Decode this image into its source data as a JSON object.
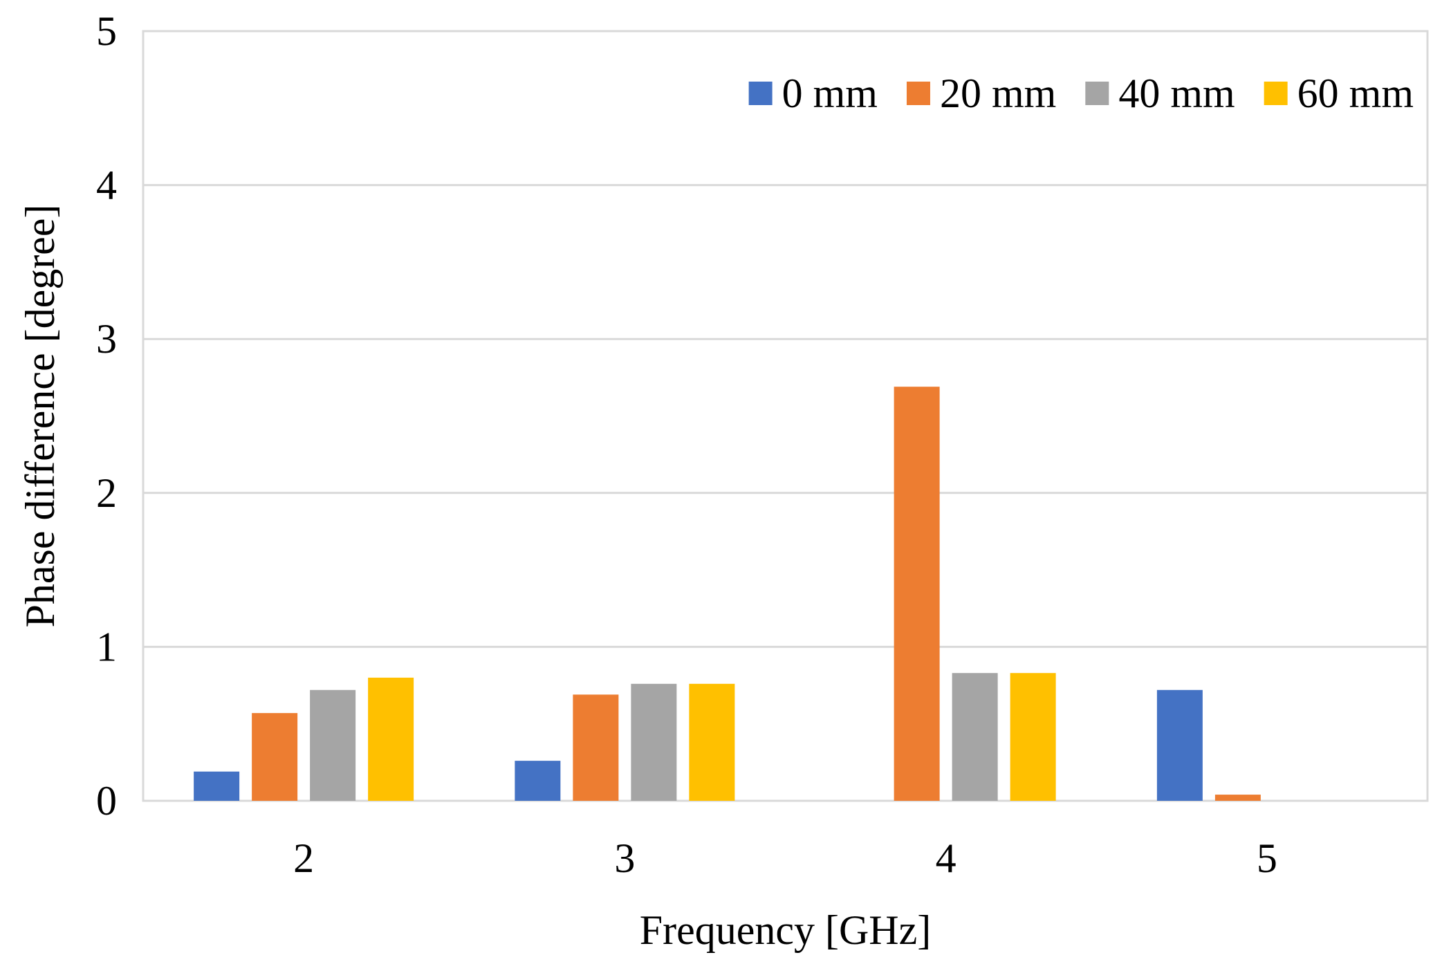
{
  "chart_data": {
    "type": "bar",
    "title": "",
    "xlabel": "Frequency [GHz]",
    "ylabel": "Phase difference [degree]",
    "categories": [
      "2",
      "3",
      "4",
      "5"
    ],
    "yticks": [
      "0",
      "1",
      "2",
      "3",
      "4",
      "5"
    ],
    "ylim": [
      0,
      5
    ],
    "grid": true,
    "legend_position": "top-right",
    "series": [
      {
        "name": "0 mm",
        "color": "#4472C4",
        "values": [
          0.19,
          0.26,
          0.0,
          0.72
        ]
      },
      {
        "name": "20 mm",
        "color": "#ED7D31",
        "values": [
          0.57,
          0.69,
          2.69,
          0.04
        ]
      },
      {
        "name": "40 mm",
        "color": "#A5A5A5",
        "values": [
          0.72,
          0.76,
          0.83,
          0.0
        ]
      },
      {
        "name": "60 mm",
        "color": "#FFC000",
        "values": [
          0.8,
          0.76,
          0.83,
          0.0
        ]
      }
    ]
  }
}
